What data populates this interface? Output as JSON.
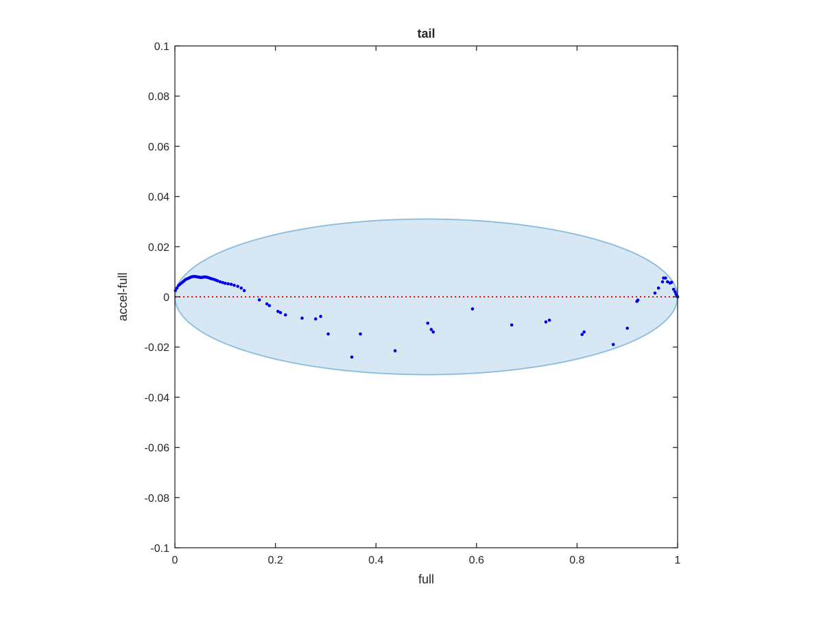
{
  "chart_data": {
    "type": "scatter",
    "title": "tail",
    "xlabel": "full",
    "ylabel": "accel-full",
    "xlim": [
      0,
      1
    ],
    "ylim": [
      -0.1,
      0.1
    ],
    "x_ticks": [
      0,
      0.2,
      0.4,
      0.6,
      0.8,
      1
    ],
    "x_tick_labels": [
      "0",
      "0.2",
      "0.4",
      "0.6",
      "0.8",
      "1"
    ],
    "y_ticks": [
      -0.1,
      -0.08,
      -0.06,
      -0.04,
      -0.02,
      0,
      0.02,
      0.04,
      0.06,
      0.08,
      0.1
    ],
    "y_tick_labels": [
      "-0.1",
      "-0.08",
      "-0.06",
      "-0.04",
      "-0.02",
      "0",
      "0.02",
      "0.04",
      "0.06",
      "0.08",
      "0.1"
    ],
    "grid": false,
    "reference_line": {
      "y": 0,
      "style": "dotted",
      "color": "#ff0000"
    },
    "ellipse": {
      "cx": 0.5,
      "cy": 0,
      "rx": 0.5,
      "ry": 0.031,
      "fill": "#d7e7f4",
      "stroke": "#8fbfe0"
    },
    "series": [
      {
        "marker_color": "#0000e6",
        "points": [
          [
            0.001,
            0.0025
          ],
          [
            0.004,
            0.0035
          ],
          [
            0.007,
            0.0045
          ],
          [
            0.01,
            0.005
          ],
          [
            0.013,
            0.0055
          ],
          [
            0.016,
            0.006
          ],
          [
            0.019,
            0.0065
          ],
          [
            0.022,
            0.007
          ],
          [
            0.025,
            0.0072
          ],
          [
            0.028,
            0.0075
          ],
          [
            0.031,
            0.0078
          ],
          [
            0.034,
            0.008
          ],
          [
            0.037,
            0.0081
          ],
          [
            0.04,
            0.0081
          ],
          [
            0.043,
            0.008
          ],
          [
            0.046,
            0.0079
          ],
          [
            0.049,
            0.0078
          ],
          [
            0.052,
            0.0077
          ],
          [
            0.055,
            0.0078
          ],
          [
            0.058,
            0.0079
          ],
          [
            0.061,
            0.0079
          ],
          [
            0.064,
            0.0078
          ],
          [
            0.067,
            0.0076
          ],
          [
            0.07,
            0.0074
          ],
          [
            0.073,
            0.0072
          ],
          [
            0.077,
            0.007
          ],
          [
            0.081,
            0.0067
          ],
          [
            0.085,
            0.0064
          ],
          [
            0.09,
            0.006
          ],
          [
            0.095,
            0.0057
          ],
          [
            0.1,
            0.0054
          ],
          [
            0.106,
            0.0052
          ],
          [
            0.112,
            0.005
          ],
          [
            0.118,
            0.0046
          ],
          [
            0.125,
            0.0042
          ],
          [
            0.132,
            0.0035
          ],
          [
            0.138,
            0.0025
          ],
          [
            0.168,
            -0.0012
          ],
          [
            0.183,
            -0.0028
          ],
          [
            0.188,
            -0.0035
          ],
          [
            0.205,
            -0.0058
          ],
          [
            0.21,
            -0.0063
          ],
          [
            0.22,
            -0.0072
          ],
          [
            0.253,
            -0.0085
          ],
          [
            0.28,
            -0.0088
          ],
          [
            0.29,
            -0.0078
          ],
          [
            0.305,
            -0.0148
          ],
          [
            0.352,
            -0.024
          ],
          [
            0.369,
            -0.0148
          ],
          [
            0.438,
            -0.0215
          ],
          [
            0.503,
            -0.0105
          ],
          [
            0.51,
            -0.013
          ],
          [
            0.514,
            -0.014
          ],
          [
            0.592,
            -0.0048
          ],
          [
            0.67,
            -0.0112
          ],
          [
            0.738,
            -0.01
          ],
          [
            0.745,
            -0.0093
          ],
          [
            0.81,
            -0.015
          ],
          [
            0.814,
            -0.014
          ],
          [
            0.872,
            -0.019
          ],
          [
            0.9,
            -0.0125
          ],
          [
            0.919,
            -0.0018
          ],
          [
            0.921,
            -0.0013
          ],
          [
            0.955,
            0.0015
          ],
          [
            0.962,
            0.0035
          ],
          [
            0.97,
            0.006
          ],
          [
            0.972,
            0.0075
          ],
          [
            0.976,
            0.0075
          ],
          [
            0.98,
            0.006
          ],
          [
            0.985,
            0.0055
          ],
          [
            0.988,
            0.0058
          ],
          [
            0.992,
            0.003
          ],
          [
            0.995,
            0.002
          ],
          [
            0.997,
            0.001
          ],
          [
            0.999,
            0.0003
          ],
          [
            1.0,
            0.0
          ]
        ]
      }
    ]
  }
}
